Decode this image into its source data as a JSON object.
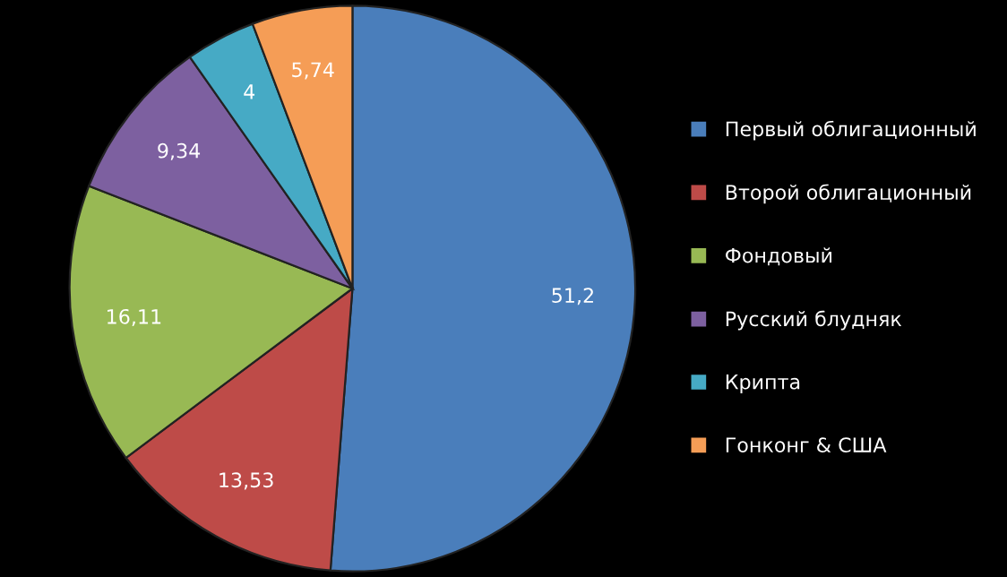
{
  "chart_data": {
    "type": "pie",
    "categories": [
      "Первый облигационный",
      "Второй облигационный",
      "Фондовый",
      "Русский блудняк",
      "Крипта",
      "Гонконг & США"
    ],
    "values": [
      51.2,
      13.53,
      16.11,
      9.34,
      4,
      5.74
    ],
    "value_labels": [
      "51,2",
      "13,53",
      "16,11",
      "9,34",
      "4",
      "5,74"
    ],
    "colors": [
      "#4a7ebb",
      "#be4b48",
      "#98b954",
      "#7d60a0",
      "#46aac5",
      "#f59d56"
    ],
    "legend": "right"
  }
}
